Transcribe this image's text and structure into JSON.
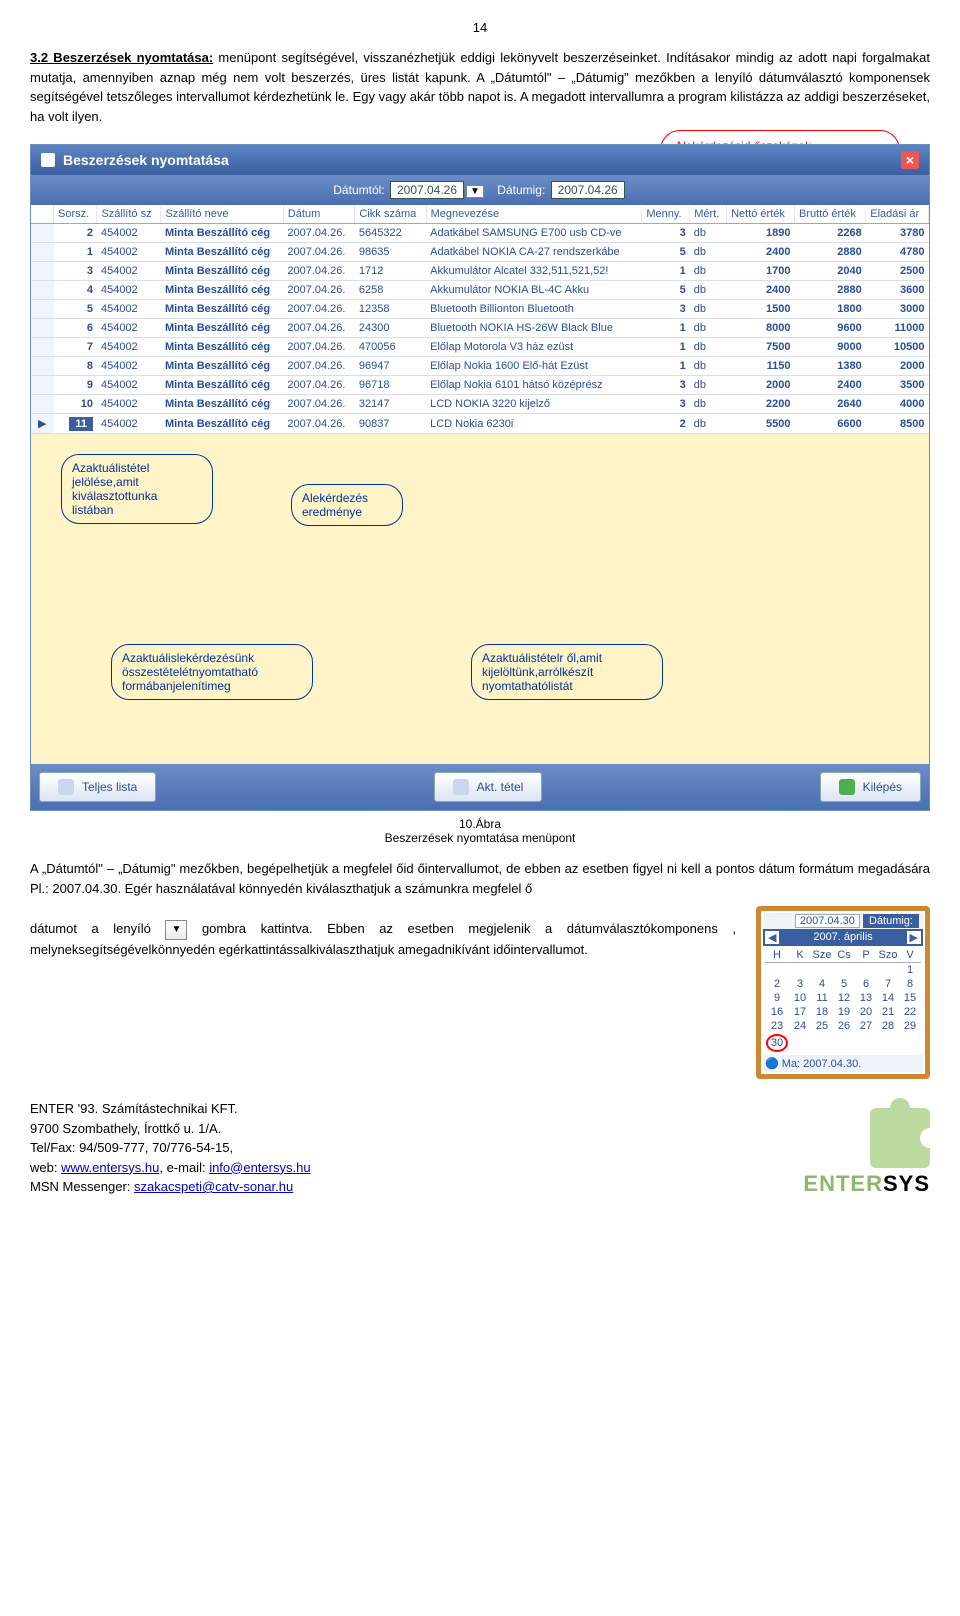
{
  "page_number": "14",
  "heading": "3.2 Beszerzések nyomtatása:",
  "para1_rest": " menüpont segítségével, visszanézhetjük eddigi lekönyvelt beszerzéseinket. Indításakor mindig az adott napi forgalmakat mutatja, amennyiben aznap még nem volt beszerzés, üres listát kapunk. A „Dátumtól\" – „Dátumig\" mezőkben a lenyíló dátumválasztó komponensek segítségével tetszőleges intervallumot kérdezhetünk le. Egy vagy akár több napot is. A megadott intervallumra a program kilistázza az addigi beszerzéseket, ha volt ilyen.",
  "callout_tr": "Alekérdezésid őszakának megadhatósága,melylehet bármilyentetsz őlegesi dőszak",
  "window": {
    "title": "Beszerzések nyomtatása",
    "filter": {
      "from_label": "Dátumtól:",
      "from_val": "2007.04.26",
      "to_label": "Dátumig:",
      "to_val": "2007.04.26"
    },
    "columns": [
      "Sorsz.",
      "Szállító sz",
      "Szállító neve",
      "Dátum",
      "Cikk száma",
      "Megnevezése",
      "Menny.",
      "Mért.",
      "Nettó érték",
      "Bruttó érték",
      "Eladási ár"
    ],
    "rows": [
      {
        "s": "2",
        "sz": "454002",
        "nm": "Minta Beszállító cég",
        "d": "2007.04.26.",
        "c": "5645322",
        "m": "Adatkábel SAMSUNG E700 usb CD-ve",
        "q": "3",
        "u": "db",
        "n": "1890",
        "b": "2268",
        "e": "3780"
      },
      {
        "s": "1",
        "sz": "454002",
        "nm": "Minta Beszállító cég",
        "d": "2007.04.26.",
        "c": "98635",
        "m": "Adatkábel NOKIA CA-27 rendszerkábe",
        "q": "5",
        "u": "db",
        "n": "2400",
        "b": "2880",
        "e": "4780"
      },
      {
        "s": "3",
        "sz": "454002",
        "nm": "Minta Beszállító cég",
        "d": "2007.04.26.",
        "c": "1712",
        "m": "Akkumulátor Alcatel 332,511,521,52!",
        "q": "1",
        "u": "db",
        "n": "1700",
        "b": "2040",
        "e": "2500"
      },
      {
        "s": "4",
        "sz": "454002",
        "nm": "Minta Beszállító cég",
        "d": "2007.04.26.",
        "c": "6258",
        "m": "Akkumulátor NOKIA BL-4C Akku",
        "q": "5",
        "u": "db",
        "n": "2400",
        "b": "2880",
        "e": "3600"
      },
      {
        "s": "5",
        "sz": "454002",
        "nm": "Minta Beszállító cég",
        "d": "2007.04.26.",
        "c": "12358",
        "m": "Bluetooth Billionton Bluetooth",
        "q": "3",
        "u": "db",
        "n": "1500",
        "b": "1800",
        "e": "3000"
      },
      {
        "s": "6",
        "sz": "454002",
        "nm": "Minta Beszállító cég",
        "d": "2007.04.26.",
        "c": "24300",
        "m": "Bluetooth NOKIA HS-26W Black Blue",
        "q": "1",
        "u": "db",
        "n": "8000",
        "b": "9600",
        "e": "11000"
      },
      {
        "s": "7",
        "sz": "454002",
        "nm": "Minta Beszállító cég",
        "d": "2007.04.26.",
        "c": "470056",
        "m": "Előlap Motorola V3 ház ezüst",
        "q": "1",
        "u": "db",
        "n": "7500",
        "b": "9000",
        "e": "10500"
      },
      {
        "s": "8",
        "sz": "454002",
        "nm": "Minta Beszállító cég",
        "d": "2007.04.26.",
        "c": "96947",
        "m": "Előlap Nokia 1600 Elő-hát Ezüst",
        "q": "1",
        "u": "db",
        "n": "1150",
        "b": "1380",
        "e": "2000"
      },
      {
        "s": "9",
        "sz": "454002",
        "nm": "Minta Beszállító cég",
        "d": "2007.04.26.",
        "c": "96718",
        "m": "Előlap Nokia 6101 hátsó középrész",
        "q": "3",
        "u": "db",
        "n": "2000",
        "b": "2400",
        "e": "3500"
      },
      {
        "s": "10",
        "sz": "454002",
        "nm": "Minta Beszállító cég",
        "d": "2007.04.26.",
        "c": "32147",
        "m": "LCD NOKIA 3220 kijelző",
        "q": "3",
        "u": "db",
        "n": "2200",
        "b": "2640",
        "e": "4000"
      },
      {
        "s": "11",
        "sz": "454002",
        "nm": "Minta Beszállító cég",
        "d": "2007.04.26.",
        "c": "90837",
        "m": "LCD Nokia 6230i",
        "q": "2",
        "u": "db",
        "n": "5500",
        "b": "6600",
        "e": "8500"
      }
    ],
    "callouts": {
      "c1": "Azaktuálistétel jelölése,amit kiválasztottunka listában",
      "c2": "Alekérdezés eredménye",
      "c3": "Azaktuálislekérdezésünk összestételétnyomtatható formábanjelenítimeg",
      "c4": "Azaktuálistételr ől,amit kijelöltünk,arrólkészít nyomtathatólistát"
    },
    "buttons": {
      "b1": "Teljes lista",
      "b2": "Akt. tétel",
      "b3": "Kilépés"
    }
  },
  "figcap_num": "10.Ábra",
  "figcap_txt": "Beszerzések nyomtatása menüpont",
  "para2": "A „Dátumtól\" – „Dátumig\" mezőkben, begépelhetjük a megfelel őid őintervallumot, de ebben az esetben figyel ni kell a pontos dátum formátum megadására Pl.: 2007.04.30. Egér használatával könnyedén kiválaszthatjuk a számunkra megfelel ő",
  "para3a": "dátumot a lenyíló",
  "para3b": " gombra kattintva. Ebben az esetben megjelenik a dátumválasztókomponens , melyneksegítségévelkönnyedén egérkattintássalkiválaszthatjuk amegadnikívánt időintervallumot.",
  "calendar": {
    "topdate": "2007.04.30",
    "toplabel": "Dátumig:",
    "month": "2007. április",
    "dow": [
      "H",
      "K",
      "Sze",
      "Cs",
      "P",
      "Szo",
      "V"
    ],
    "weeks": [
      [
        "",
        "",
        "",
        "",
        "",
        "",
        "1"
      ],
      [
        "2",
        "3",
        "4",
        "5",
        "6",
        "7",
        "8"
      ],
      [
        "9",
        "10",
        "11",
        "12",
        "13",
        "14",
        "15"
      ],
      [
        "16",
        "17",
        "18",
        "19",
        "20",
        "21",
        "22"
      ],
      [
        "23",
        "24",
        "25",
        "26",
        "27",
        "28",
        "29"
      ],
      [
        "30",
        "",
        "",
        "",
        "",
        "",
        ""
      ]
    ],
    "today_label": "Ma: 2007.04.30."
  },
  "footer": {
    "l1": "ENTER '93. Számítástechnikai KFT.",
    "l2": "9700 Szombathely, Írottkő u. 1/A.",
    "l3": "Tel/Fax: 94/509-777,   70/776-54-15,",
    "l4a": "web: ",
    "l4b": "www.entersys.hu",
    "l4c": ",   e-mail: ",
    "l4d": "info@entersys.hu",
    "l5a": "MSN Messenger: ",
    "l5b": "szakacspeti@catv-sonar.hu"
  },
  "logo": "ENTERSYS"
}
